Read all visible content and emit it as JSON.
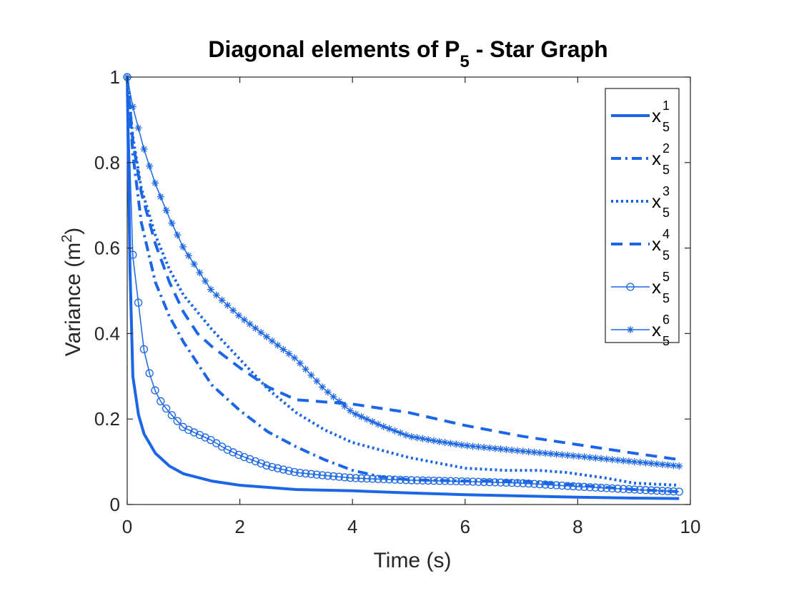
{
  "chart_data": {
    "type": "line",
    "title": "Diagonal elements of P",
    "title_subscript": "5",
    "title_suffix": " -   Star Graph",
    "xlabel": "Time (s)",
    "ylabel_prefix": "Variance (m",
    "ylabel_sup": "2",
    "ylabel_suffix": ")",
    "xlim": [
      0,
      10
    ],
    "ylim": [
      0,
      1
    ],
    "xticks": [
      0,
      2,
      4,
      6,
      8,
      10
    ],
    "yticks": [
      0,
      0.2,
      0.4,
      0.6,
      0.8,
      1
    ],
    "xtick_labels": [
      "0",
      "2",
      "4",
      "6",
      "8",
      "10"
    ],
    "ytick_labels": [
      "0",
      "0.2",
      "0.4",
      "0.6",
      "0.8",
      "1"
    ],
    "grid": false,
    "legend_position": "top-right",
    "color": "#1a66e6",
    "series": [
      {
        "name": "x",
        "sup": "1",
        "sub": "5",
        "style": "solid",
        "marker": "none",
        "width": 4,
        "x": [
          0,
          0.05,
          0.1,
          0.2,
          0.3,
          0.5,
          0.75,
          1,
          1.5,
          2,
          3,
          4,
          5,
          6,
          7,
          8,
          9,
          9.8
        ],
        "y": [
          1,
          0.55,
          0.3,
          0.21,
          0.165,
          0.12,
          0.09,
          0.072,
          0.055,
          0.045,
          0.035,
          0.032,
          0.027,
          0.023,
          0.02,
          0.017,
          0.015,
          0.014
        ]
      },
      {
        "name": "x",
        "sup": "2",
        "sub": "5",
        "style": "dashdot",
        "marker": "none",
        "width": 4,
        "x": [
          0,
          0.1,
          0.25,
          0.5,
          0.75,
          1,
          1.3,
          1.5,
          1.75,
          2,
          2.5,
          3,
          3.5,
          4,
          4.5,
          5,
          6,
          7,
          8,
          9,
          9.8
        ],
        "y": [
          1,
          0.82,
          0.66,
          0.52,
          0.44,
          0.38,
          0.32,
          0.28,
          0.25,
          0.22,
          0.17,
          0.135,
          0.105,
          0.08,
          0.065,
          0.058,
          0.055,
          0.055,
          0.045,
          0.035,
          0.03
        ]
      },
      {
        "name": "x",
        "sup": "3",
        "sub": "5",
        "style": "dotted",
        "marker": "none",
        "width": 4,
        "x": [
          0,
          0.1,
          0.25,
          0.5,
          0.75,
          1,
          1.5,
          2,
          2.5,
          3,
          3.5,
          4,
          5,
          6,
          6.7,
          7.3,
          7.8,
          8.5,
          9,
          9.8
        ],
        "y": [
          1,
          0.86,
          0.74,
          0.63,
          0.55,
          0.49,
          0.41,
          0.34,
          0.27,
          0.215,
          0.175,
          0.145,
          0.11,
          0.085,
          0.08,
          0.08,
          0.075,
          0.062,
          0.05,
          0.045
        ]
      },
      {
        "name": "x",
        "sup": "4",
        "sub": "5",
        "style": "dashed",
        "marker": "none",
        "width": 4,
        "x": [
          0,
          0.1,
          0.25,
          0.5,
          0.75,
          1,
          1.25,
          1.5,
          2,
          2.5,
          3,
          3.5,
          4,
          5,
          6,
          7,
          8,
          9,
          9.8
        ],
        "y": [
          1,
          0.85,
          0.73,
          0.61,
          0.52,
          0.45,
          0.4,
          0.37,
          0.32,
          0.275,
          0.245,
          0.24,
          0.235,
          0.215,
          0.185,
          0.16,
          0.14,
          0.12,
          0.105
        ]
      },
      {
        "name": "x",
        "sup": "5",
        "sub": "5",
        "style": "solid",
        "marker": "circle",
        "width": 1.5,
        "x": [
          0,
          0.1,
          0.2,
          0.3,
          0.4,
          0.5,
          0.6,
          0.75,
          1,
          1.25,
          1.5,
          1.75,
          2,
          2.5,
          3,
          3.5,
          4,
          5,
          6,
          7,
          8,
          9,
          9.8
        ],
        "y": [
          1,
          0.58,
          0.47,
          0.36,
          0.305,
          0.265,
          0.24,
          0.215,
          0.18,
          0.165,
          0.15,
          0.13,
          0.115,
          0.09,
          0.075,
          0.068,
          0.062,
          0.057,
          0.054,
          0.05,
          0.042,
          0.035,
          0.03
        ]
      },
      {
        "name": "x",
        "sup": "6",
        "sub": "5",
        "style": "solid",
        "marker": "star",
        "width": 1.5,
        "x": [
          0,
          0.1,
          0.2,
          0.3,
          0.5,
          0.75,
          1,
          1.25,
          1.5,
          2,
          2.5,
          3,
          3.5,
          4,
          4.5,
          5,
          5.5,
          6,
          7,
          8,
          9,
          9.8
        ],
        "y": [
          1,
          0.93,
          0.88,
          0.83,
          0.75,
          0.67,
          0.6,
          0.55,
          0.5,
          0.44,
          0.39,
          0.34,
          0.27,
          0.215,
          0.185,
          0.16,
          0.148,
          0.138,
          0.125,
          0.113,
          0.1,
          0.09
        ]
      }
    ]
  }
}
